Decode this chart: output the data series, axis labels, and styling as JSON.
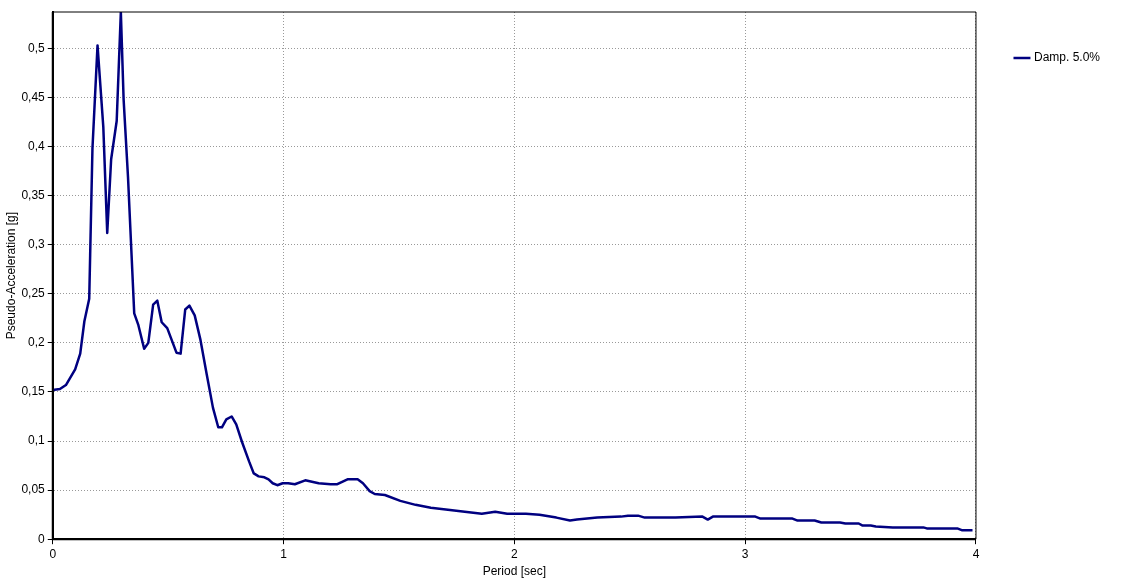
{
  "chart_data": {
    "type": "line",
    "xlabel": "Period [sec]",
    "ylabel": "Pseudo-Acceleration [g]",
    "xlim": [
      0,
      4
    ],
    "xticks": [
      0,
      1,
      2,
      3,
      4
    ],
    "ylim": [
      0,
      0.537
    ],
    "yticks": [
      0,
      {
        "value": 0.05,
        "label": "0,05"
      },
      {
        "value": 0.1,
        "label": "0,1"
      },
      {
        "value": 0.15,
        "label": "0,15"
      },
      {
        "value": 0.2,
        "label": "0,2"
      },
      {
        "value": 0.25,
        "label": "0,25"
      },
      {
        "value": 0.3,
        "label": "0,3"
      },
      {
        "value": 0.35,
        "label": "0,35"
      },
      {
        "value": 0.4,
        "label": "0,4"
      },
      {
        "value": 0.45,
        "label": "0,45"
      },
      {
        "value": 0.5,
        "label": "0,5"
      }
    ],
    "grid": true,
    "legend": "top right",
    "marker": "none",
    "line_style": "solid",
    "series": [
      {
        "name": "Damp. 5.0%",
        "color": "#000080",
        "x": [
          0,
          0.031,
          0.057,
          0.097,
          0.119,
          0.137,
          0.158,
          0.172,
          0.194,
          0.219,
          0.236,
          0.253,
          0.277,
          0.295,
          0.307,
          0.326,
          0.353,
          0.371,
          0.396,
          0.414,
          0.435,
          0.453,
          0.472,
          0.496,
          0.536,
          0.554,
          0.574,
          0.592,
          0.615,
          0.64,
          0.667,
          0.694,
          0.717,
          0.733,
          0.752,
          0.775,
          0.795,
          0.82,
          0.851,
          0.871,
          0.892,
          0.917,
          0.935,
          0.953,
          0.973,
          0.996,
          1.02,
          1.049,
          1.094,
          1.152,
          1.204,
          1.233,
          1.277,
          1.321,
          1.344,
          1.373,
          1.395,
          1.439,
          1.506,
          1.572,
          1.638,
          1.712,
          1.785,
          1.859,
          1.917,
          1.969,
          2.05,
          2.109,
          2.182,
          2.241,
          2.271,
          2.315,
          2.359,
          2.462,
          2.492,
          2.536,
          2.565,
          2.698,
          2.815,
          2.838,
          2.86,
          3.044,
          3.066,
          3.205,
          3.227,
          3.301,
          3.33,
          3.411,
          3.434,
          3.492,
          3.507,
          3.544,
          3.566,
          3.64,
          3.772,
          3.787,
          3.919,
          3.941,
          3.985
        ],
        "values": [
          0.152,
          0.153,
          0.157,
          0.173,
          0.189,
          0.222,
          0.245,
          0.398,
          0.503,
          0.42,
          0.312,
          0.387,
          0.426,
          0.537,
          0.448,
          0.369,
          0.23,
          0.218,
          0.194,
          0.2,
          0.239,
          0.243,
          0.221,
          0.215,
          0.19,
          0.189,
          0.234,
          0.238,
          0.228,
          0.203,
          0.168,
          0.134,
          0.114,
          0.114,
          0.122,
          0.125,
          0.117,
          0.099,
          0.079,
          0.067,
          0.064,
          0.063,
          0.061,
          0.057,
          0.055,
          0.057,
          0.057,
          0.056,
          0.06,
          0.057,
          0.056,
          0.056,
          0.061,
          0.061,
          0.057,
          0.049,
          0.046,
          0.045,
          0.039,
          0.035,
          0.032,
          0.03,
          0.028,
          0.026,
          0.028,
          0.026,
          0.026,
          0.025,
          0.022,
          0.019,
          0.02,
          0.021,
          0.022,
          0.023,
          0.024,
          0.024,
          0.022,
          0.022,
          0.023,
          0.02,
          0.023,
          0.023,
          0.021,
          0.021,
          0.019,
          0.019,
          0.017,
          0.017,
          0.016,
          0.016,
          0.014,
          0.014,
          0.013,
          0.012,
          0.012,
          0.011,
          0.011,
          0.009,
          0.009
        ]
      }
    ]
  }
}
